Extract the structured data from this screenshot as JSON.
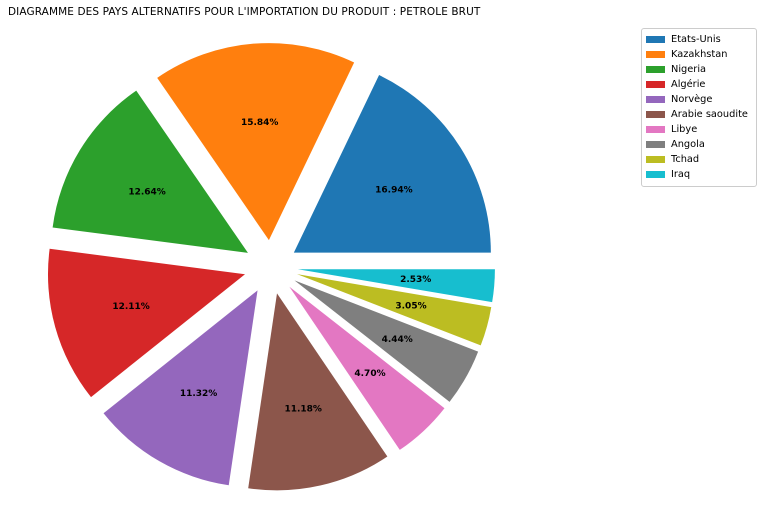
{
  "chart_data": {
    "type": "pie",
    "title": "DIAGRAMME DES PAYS ALTERNATIFS POUR L'IMPORTATION DU PRODUIT : PETROLE BRUT",
    "categories": [
      "Etats-Unis",
      "Kazakhstan",
      "Nigeria",
      "Algérie",
      "Norvège",
      "Arabie saoudite",
      "Libye",
      "Angola",
      "Tchad",
      "Iraq"
    ],
    "values": [
      16.94,
      15.84,
      12.64,
      12.11,
      11.32,
      11.18,
      4.7,
      4.44,
      3.05,
      2.53
    ],
    "value_labels": [
      "16.94%",
      "15.84%",
      "12.64%",
      "12.11%",
      "11.32%",
      "11.18%",
      "4.70%",
      "4.44%",
      "3.05%",
      "2.53%"
    ],
    "colors": [
      "#1f77b4",
      "#ff7f0e",
      "#2ca02c",
      "#d62728",
      "#9467bd",
      "#8c564b",
      "#e377c2",
      "#7f7f7f",
      "#bcbd22",
      "#17becf"
    ],
    "legend_position": "upper right",
    "legend_entries": [
      "Etats-Unis",
      "Kazakhstan",
      "Nigeria",
      "Algérie",
      "Norvège",
      "Arabie saoudite",
      "Libye",
      "Angola",
      "Tchad",
      "Iraq"
    ],
    "start_angle_deg": 0,
    "direction": "counterclockwise",
    "slices_exploded": true,
    "label_text_color": "#000000",
    "background_color": "#ffffff"
  }
}
